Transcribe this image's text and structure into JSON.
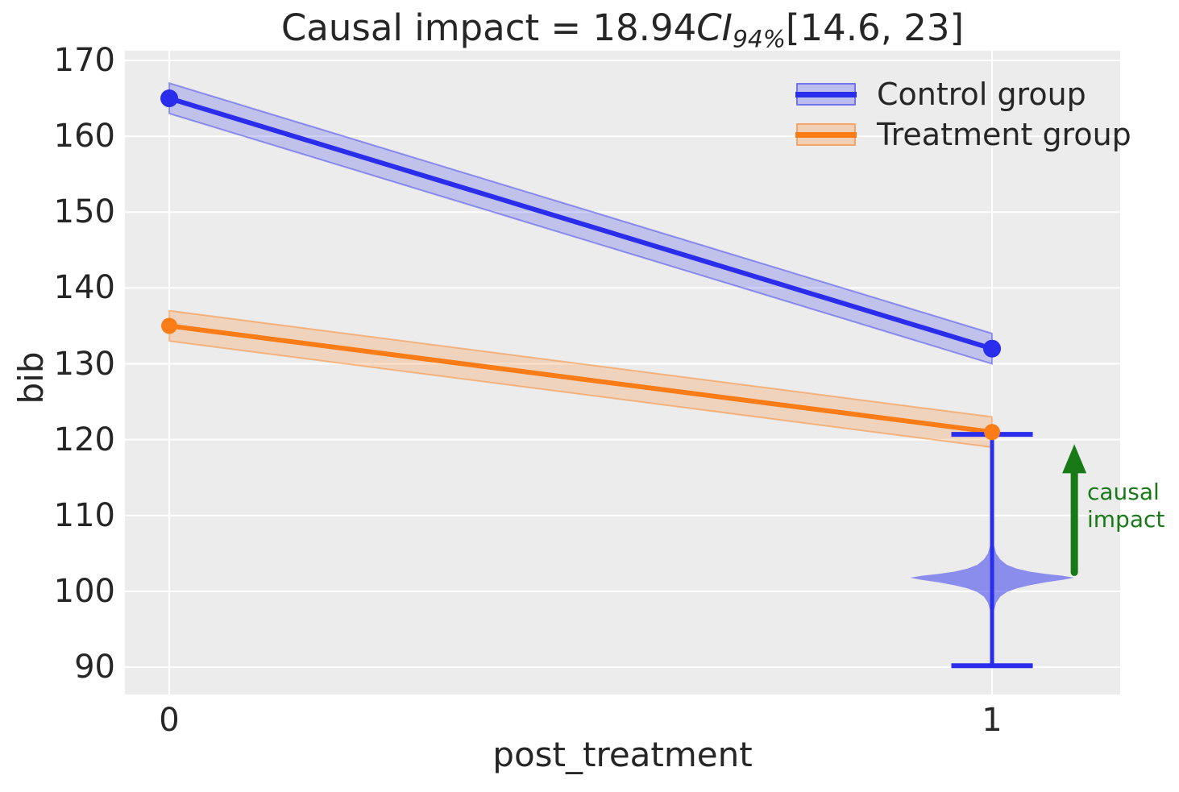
{
  "title": {
    "pre": "Causal impact = 18.94",
    "ci": "CI",
    "ci_sub": "94%",
    "post": "[14.6, 23]"
  },
  "axes": {
    "xlabel": "post_treatment",
    "ylabel": "bib",
    "x_tick_labels": [
      "0",
      "1"
    ],
    "y_tick_labels": [
      "90",
      "100",
      "110",
      "120",
      "130",
      "140",
      "150",
      "160",
      "170"
    ]
  },
  "legend": {
    "items": [
      {
        "label": "Control group",
        "color": "#2a2eec"
      },
      {
        "label": "Treatment group",
        "color": "#fa7c17"
      }
    ]
  },
  "annotation": {
    "line1": "causal",
    "line2": "impact",
    "color": "#177a17"
  },
  "colors": {
    "plot_background": "#ececec",
    "gridline": "#ffffff",
    "text": "#262626",
    "control_blue": "#2a2eec",
    "treatment_orange": "#fa7c17",
    "arrow_green": "#177a17"
  },
  "chart_data": {
    "type": "line",
    "title": "Causal impact = 18.94 CI 94% [14.6, 23]",
    "causal_impact": 18.94,
    "ci_94_percent": [
      14.6,
      23
    ],
    "xlabel": "post_treatment",
    "ylabel": "bib",
    "x": [
      0,
      1
    ],
    "x_ticks": [
      0,
      1
    ],
    "y_ticks": [
      90,
      100,
      110,
      120,
      130,
      140,
      150,
      160,
      170
    ],
    "xlim": [
      -0.0539,
      1.1557
    ],
    "ylim": [
      86.4,
      171.27
    ],
    "grid": true,
    "legend_position": "upper right",
    "series": [
      {
        "name": "Control group",
        "color": "#2a2eec",
        "values": [
          165,
          132
        ],
        "band_halfwidth": 2.0,
        "marker_radius": 11
      },
      {
        "name": "Treatment group",
        "color": "#fa7c17",
        "values": [
          135,
          121
        ],
        "band_halfwidth": 2.0,
        "marker_radius": 10
      }
    ],
    "counterfactual_violin": {
      "x": 1,
      "mode": 101.8,
      "color": "#2a2eec",
      "opacity": 0.5,
      "max_halfwidth_x": 0.0995,
      "profile": [
        [
          108.4,
          0.004
        ],
        [
          107.2,
          0.012
        ],
        [
          106.0,
          0.025
        ],
        [
          105.0,
          0.05
        ],
        [
          104.2,
          0.1
        ],
        [
          103.5,
          0.18
        ],
        [
          103.0,
          0.3
        ],
        [
          102.6,
          0.46
        ],
        [
          102.3,
          0.65
        ],
        [
          102.05,
          0.86
        ],
        [
          101.8,
          1.0
        ],
        [
          101.55,
          0.88
        ],
        [
          101.2,
          0.66
        ],
        [
          100.8,
          0.46
        ],
        [
          100.4,
          0.3
        ],
        [
          99.9,
          0.18
        ],
        [
          99.3,
          0.1
        ],
        [
          98.5,
          0.05
        ],
        [
          97.5,
          0.024
        ],
        [
          96.3,
          0.01
        ],
        [
          95.0,
          0.004
        ]
      ]
    },
    "whisker": {
      "x": 1,
      "low": 90.2,
      "high": 120.7,
      "cap_halfwidth_x": 0.0495,
      "color": "#2a2eec"
    },
    "arrow": {
      "x": 1.1,
      "from": 102.5,
      "to": 119.4,
      "color": "#177a17"
    }
  }
}
